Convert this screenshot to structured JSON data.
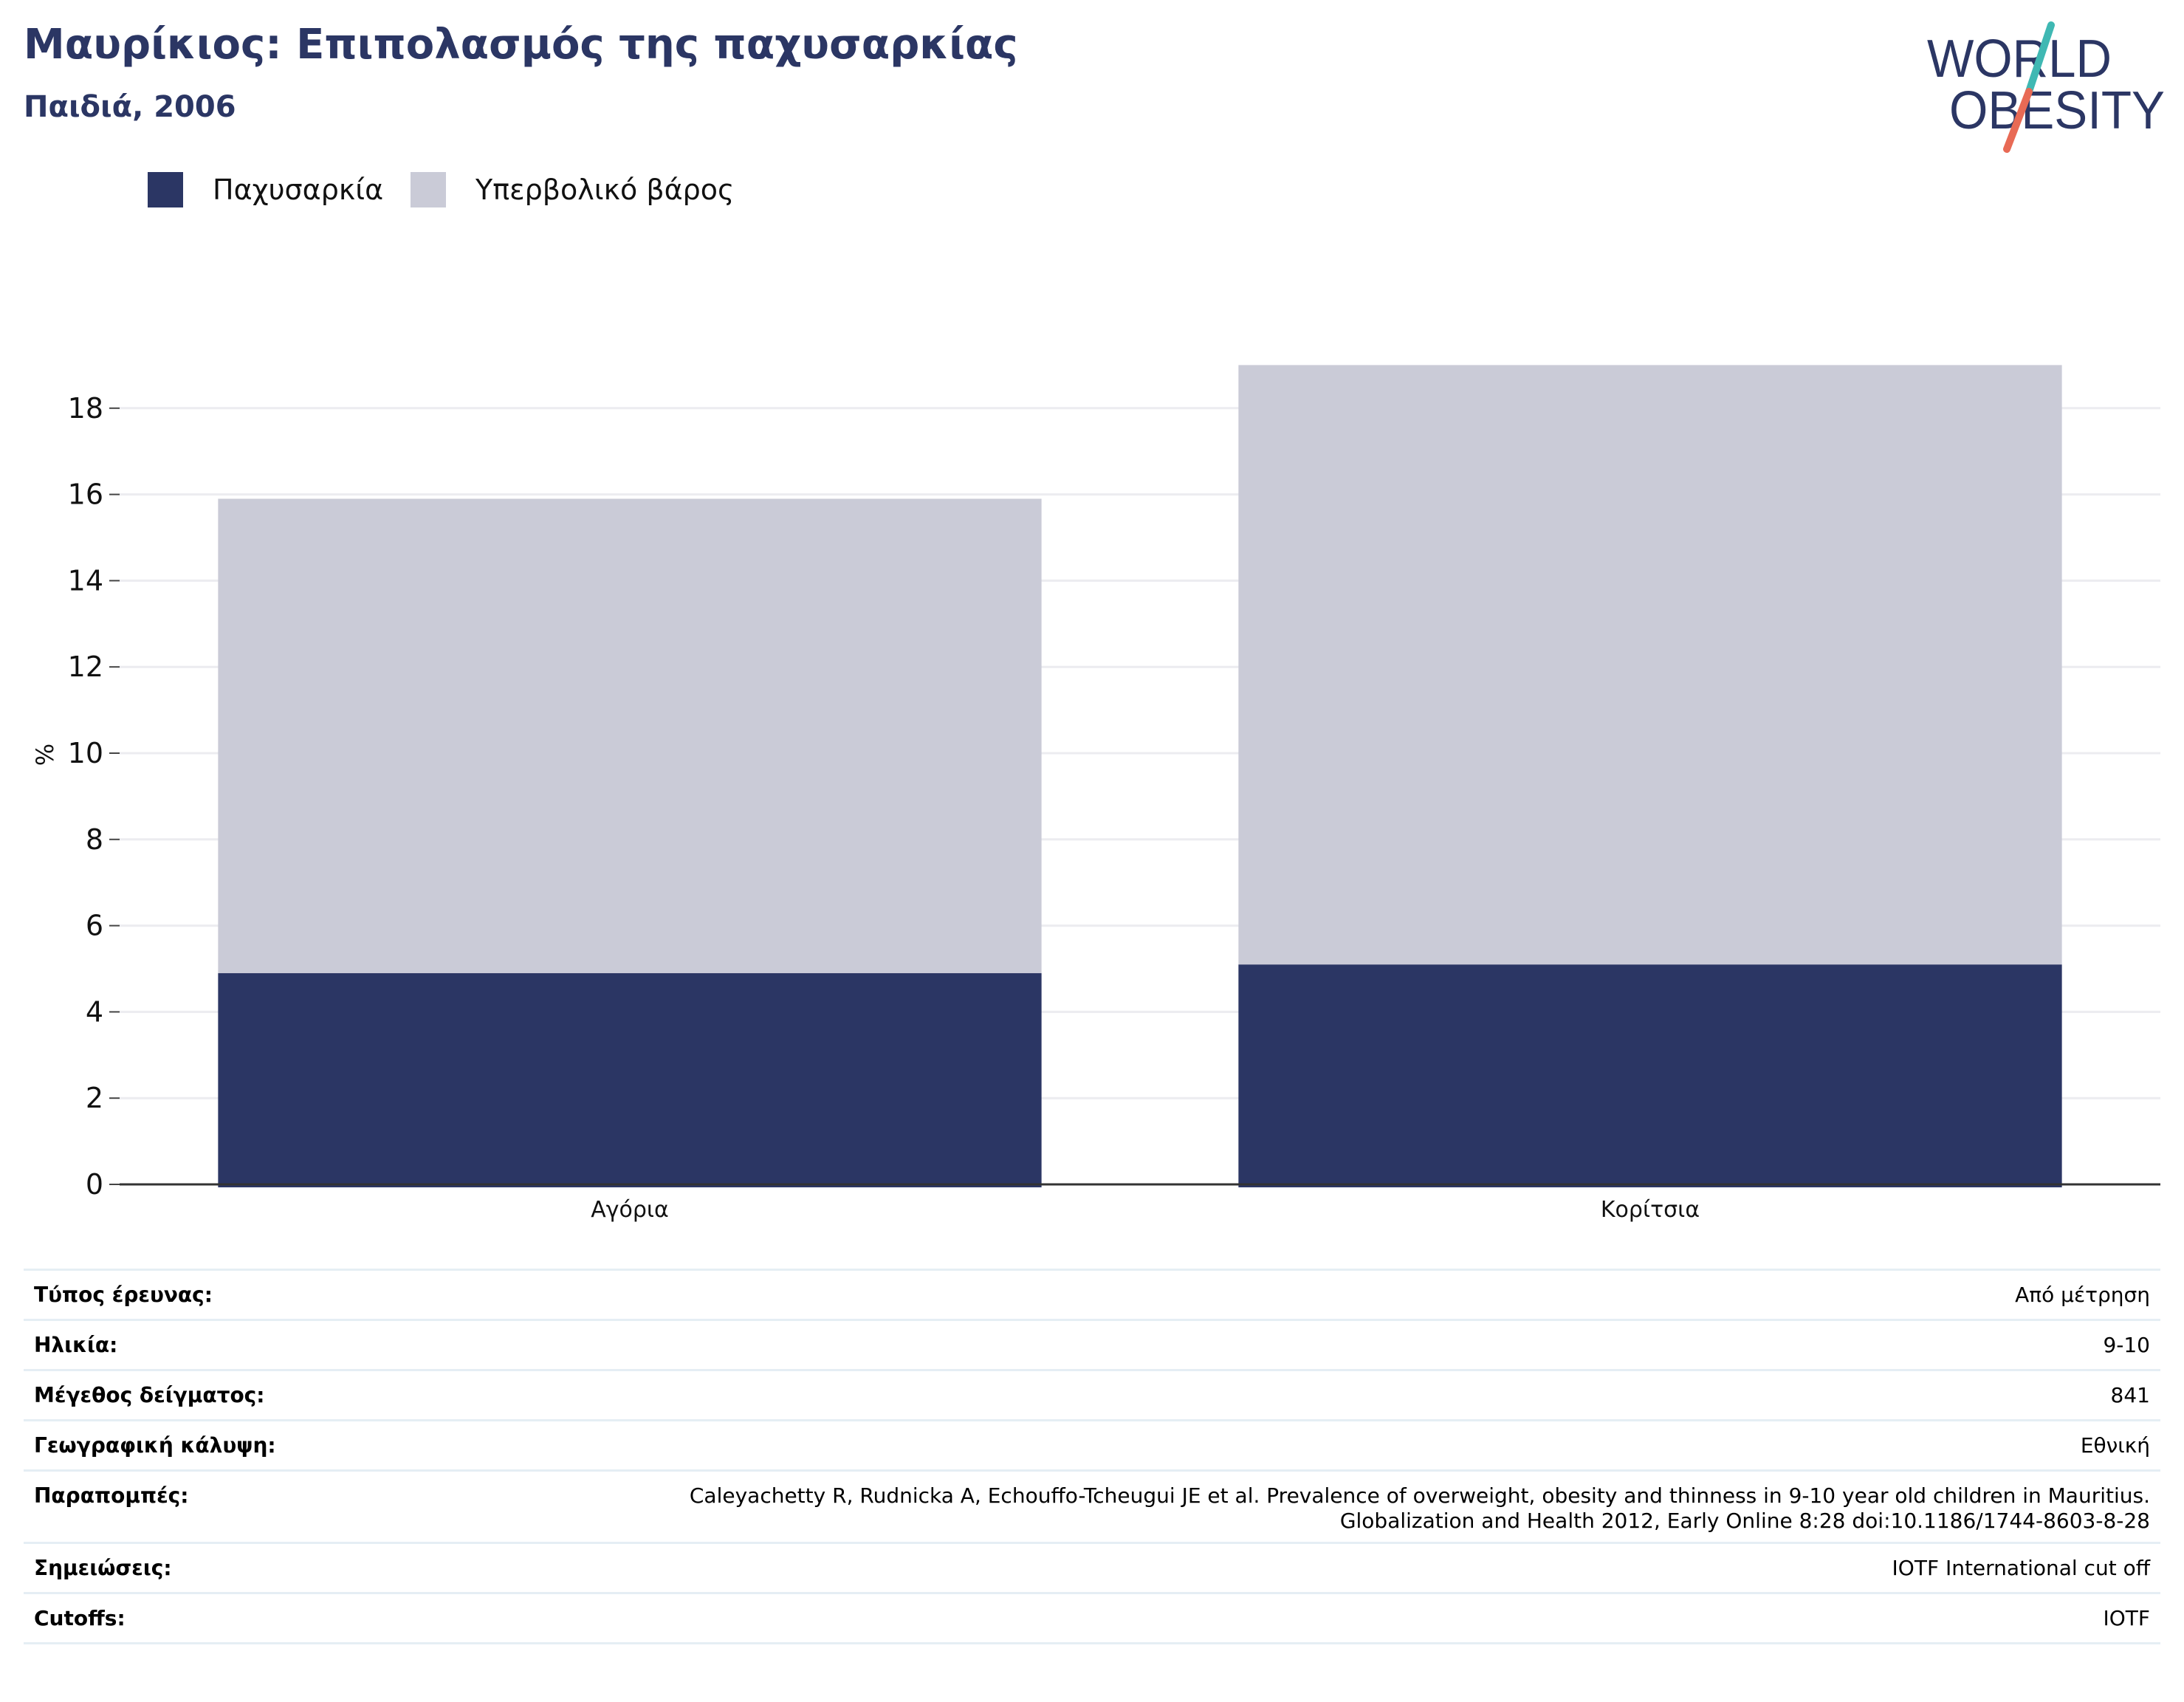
{
  "header": {
    "title": "Μαυρίκιος: Επιπολασμός της παχυσαρκίας",
    "subtitle": "Παιδιά, 2006"
  },
  "logo": {
    "line1": "WORLD",
    "line2": "OBESITY",
    "colors": {
      "text": "#2b3664",
      "slash_top": "#3fb8b3",
      "slash_bottom": "#e86a55"
    }
  },
  "chart_data": {
    "type": "bar",
    "stacked": true,
    "categories": [
      "Αγόρια",
      "Κορίτσια"
    ],
    "series": [
      {
        "name": "Παχυσαρκία",
        "color": "#2b3664",
        "values": [
          4.9,
          5.1
        ]
      },
      {
        "name": "Υπερβολικό βάρος",
        "color": "#cacbd7",
        "values": [
          11.0,
          13.9
        ]
      }
    ],
    "ylabel": "%",
    "xlabel": "",
    "ylim": [
      0,
      19
    ],
    "yticks": [
      0,
      2,
      4,
      6,
      8,
      10,
      12,
      14,
      16,
      18
    ],
    "grid": true,
    "legend": "top-left"
  },
  "info": [
    {
      "label": "Τύπος έρευνας:",
      "value": "Από μέτρηση"
    },
    {
      "label": "Ηλικία:",
      "value": "9-10"
    },
    {
      "label": "Μέγεθος δείγματος:",
      "value": "841"
    },
    {
      "label": "Γεωγραφική κάλυψη:",
      "value": "Εθνική"
    },
    {
      "label": "Παραπομπές:",
      "value": "Caleyachetty R, Rudnicka A, Echouffo-Tcheugui JE et al. Prevalence of overweight, obesity and thinness in 9-10 year old children in Mauritius.",
      "value2": "Globalization and Health 2012, Early Online 8:28 doi:10.1186/1744-8603-8-28"
    },
    {
      "label": "Σημειώσεις:",
      "value": "IOTF International cut off"
    },
    {
      "label": "Cutoffs:",
      "value": "IOTF"
    }
  ]
}
